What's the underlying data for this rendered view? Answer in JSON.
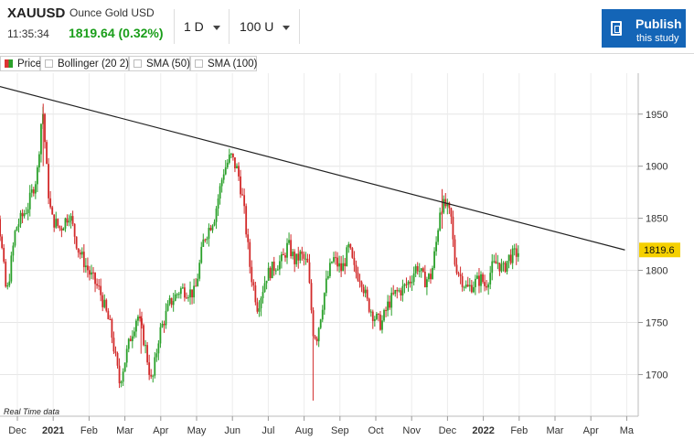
{
  "header": {
    "symbol": "XAUUSD",
    "description": "Ounce Gold USD",
    "time": "11:35:34",
    "last_price": "1819.64 (0.32%)",
    "interval": "1 D",
    "range": "100 U",
    "publish_title": "Publish",
    "publish_sub": "this study",
    "colors": {
      "price_up": "#1a9e1a",
      "publish_bg": "#1465b7"
    }
  },
  "legend": [
    {
      "label": "Price",
      "icon": "price-swatch-icon"
    },
    {
      "label": "Bollinger (20 2)",
      "icon": "checkbox-icon"
    },
    {
      "label": "SMA (50)",
      "icon": "checkbox-icon"
    },
    {
      "label": "SMA (100)",
      "icon": "checkbox-icon"
    }
  ],
  "chart": {
    "watermark": "Real Time data",
    "current_price_label": "1819.6"
  },
  "chart_data": {
    "type": "candlestick",
    "title": "",
    "xlabel": "",
    "ylabel": "",
    "ylim": [
      1660,
      1990
    ],
    "y_ticks": [
      1700,
      1750,
      1800,
      1850,
      1900,
      1950
    ],
    "x_ticks": [
      {
        "label": "Dec",
        "bold": false
      },
      {
        "label": "2021",
        "bold": true
      },
      {
        "label": "Feb",
        "bold": false
      },
      {
        "label": "Mar",
        "bold": false
      },
      {
        "label": "Apr",
        "bold": false
      },
      {
        "label": "May",
        "bold": false
      },
      {
        "label": "Jun",
        "bold": false
      },
      {
        "label": "Jul",
        "bold": false
      },
      {
        "label": "Aug",
        "bold": false
      },
      {
        "label": "Sep",
        "bold": false
      },
      {
        "label": "Oct",
        "bold": false
      },
      {
        "label": "Nov",
        "bold": false
      },
      {
        "label": "Dec",
        "bold": false
      },
      {
        "label": "2022",
        "bold": true
      },
      {
        "label": "Feb",
        "bold": false
      },
      {
        "label": "Mar",
        "bold": false
      },
      {
        "label": "Apr",
        "bold": false
      },
      {
        "label": "Ma",
        "bold": false
      }
    ],
    "x_range": [
      0,
      17
    ],
    "last_value": 1819.6,
    "trendline": [
      [
        -1.1,
        1982
      ],
      [
        16.95,
        1819.6
      ]
    ],
    "series": [
      {
        "name": "",
        "up_color": "#2aa02a",
        "down_color": "#d22a2a",
        "anchors": [
          [
            -0.95,
            1895
          ],
          [
            -0.55,
            1860
          ],
          [
            -0.3,
            1775
          ],
          [
            -0.05,
            1840
          ],
          [
            0.3,
            1862
          ],
          [
            0.55,
            1892
          ],
          [
            0.7,
            1958
          ],
          [
            0.85,
            1880
          ],
          [
            0.95,
            1850
          ],
          [
            1.2,
            1840
          ],
          [
            1.45,
            1855
          ],
          [
            1.7,
            1820
          ],
          [
            2.0,
            1798
          ],
          [
            2.3,
            1780
          ],
          [
            2.6,
            1745
          ],
          [
            2.85,
            1692
          ],
          [
            3.15,
            1735
          ],
          [
            3.35,
            1758
          ],
          [
            3.55,
            1730
          ],
          [
            3.75,
            1690
          ],
          [
            3.95,
            1738
          ],
          [
            4.25,
            1768
          ],
          [
            4.55,
            1782
          ],
          [
            4.95,
            1778
          ],
          [
            5.2,
            1830
          ],
          [
            5.5,
            1852
          ],
          [
            5.75,
            1895
          ],
          [
            5.95,
            1910
          ],
          [
            6.15,
            1895
          ],
          [
            6.3,
            1865
          ],
          [
            6.5,
            1800
          ],
          [
            6.7,
            1765
          ],
          [
            6.95,
            1795
          ],
          [
            7.2,
            1805
          ],
          [
            7.4,
            1810
          ],
          [
            7.55,
            1825
          ],
          [
            7.75,
            1808
          ],
          [
            7.9,
            1815
          ],
          [
            8.1,
            1805
          ],
          [
            8.25,
            1742
          ],
          [
            8.35,
            1735
          ],
          [
            8.6,
            1785
          ],
          [
            8.8,
            1812
          ],
          [
            9.05,
            1800
          ],
          [
            9.25,
            1822
          ],
          [
            9.4,
            1800
          ],
          [
            9.6,
            1792
          ],
          [
            9.75,
            1770
          ],
          [
            9.95,
            1756
          ],
          [
            10.15,
            1748
          ],
          [
            10.35,
            1768
          ],
          [
            10.55,
            1778
          ],
          [
            10.75,
            1782
          ],
          [
            10.95,
            1790
          ],
          [
            11.15,
            1805
          ],
          [
            11.35,
            1790
          ],
          [
            11.55,
            1795
          ],
          [
            11.7,
            1830
          ],
          [
            11.8,
            1862
          ],
          [
            11.95,
            1862
          ],
          [
            12.1,
            1850
          ],
          [
            12.2,
            1808
          ],
          [
            12.35,
            1795
          ],
          [
            12.55,
            1782
          ],
          [
            12.75,
            1788
          ],
          [
            12.95,
            1792
          ],
          [
            13.05,
            1785
          ],
          [
            13.25,
            1803
          ],
          [
            13.4,
            1808
          ],
          [
            13.55,
            1800
          ],
          [
            13.7,
            1812
          ],
          [
            13.85,
            1815
          ],
          [
            14.0,
            1818
          ]
        ]
      }
    ]
  }
}
